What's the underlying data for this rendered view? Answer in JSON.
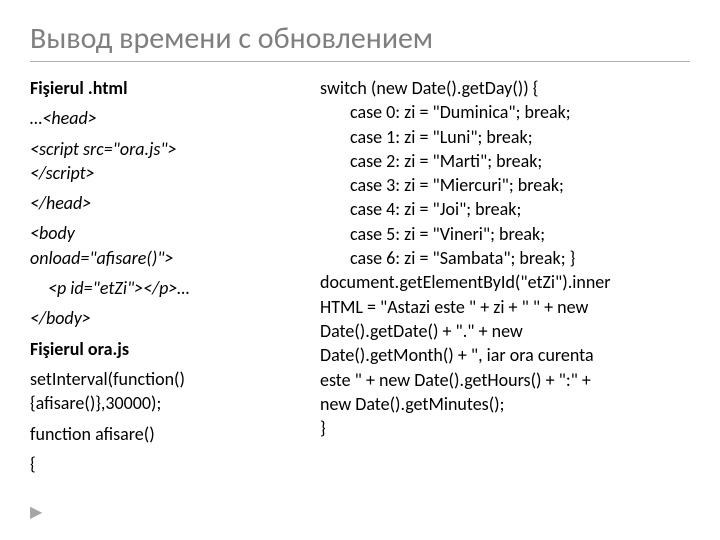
{
  "title": "Вывод  времени с обновлением",
  "left": {
    "heading1": "Fişierul .html",
    "l1": "…<head>",
    "l2": "<script src=\"ora.js\">",
    "l3": "</script>",
    "l4": "</head>",
    "l5a": "<body",
    "l5b": "onload=\"afisare()\">",
    "l6": "<p id=\"etZi\"></p>…",
    "l7": "</body>",
    "heading2": "Fişierul ora.js",
    "l8": "setInterval(function(){afisare()},30000);",
    "l9": "function afisare()",
    "l10": "{"
  },
  "right": {
    "r1": "switch (new Date().getDay()) {",
    "r2": "case 0:  zi = \"Duminica\";  break;",
    "r3": "case 1:   zi = \"Luni\";  break;",
    "r4": "case 2:   zi = \"Marti\";  break;",
    "r5": "case 3:   zi = \"Miercuri\";  break;",
    "r6": "case 4:   zi = \"Joi\";  break;",
    "r7": "case 5:   zi = \"Vineri\";  break;",
    "r8": "case  6:  zi = \"Sambata\";  break; }",
    "r9a": "document.getElementById(\"etZi\").inner",
    "r9b": "HTML = \"Astazi este \" + zi + \"  \" + new",
    "r9c": "Date().getDate() + \".\" + new",
    "r9d": "Date().getMonth() + \", iar ora curenta",
    "r9e": "este \" + new Date().getHours() + \":\" +",
    "r9f": "new Date().getMinutes();",
    "r10": "}"
  },
  "arrow": "▶"
}
